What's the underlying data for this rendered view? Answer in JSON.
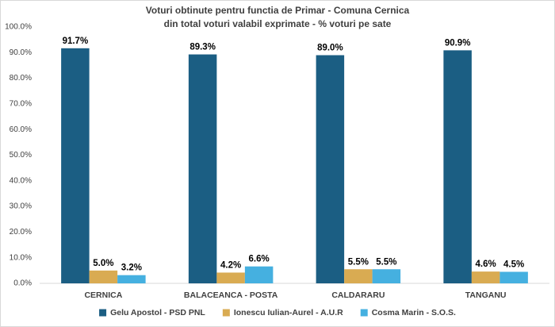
{
  "chart_data": {
    "type": "bar",
    "title": "Voturi obtinute pentru functia de Primar - Comuna Cernica",
    "subtitle": "din total voturi valabil exprimate - % voturi pe sate",
    "categories": [
      "CERNICA",
      "BALACEANCA - POSTA",
      "CALDARARU",
      "TANGANU"
    ],
    "series": [
      {
        "name": "Gelu Apostol - PSD PNL",
        "color": "#1b5e83",
        "values": [
          91.7,
          89.3,
          89.0,
          90.9
        ],
        "value_labels": [
          "91.7%",
          "89.3%",
          "89.0%",
          "90.9%"
        ]
      },
      {
        "name": "Ionescu Iulian-Aurel - A.U.R",
        "color": "#d9ab52",
        "values": [
          5.0,
          4.2,
          5.5,
          4.6
        ],
        "value_labels": [
          "5.0%",
          "4.2%",
          "5.5%",
          "4.6%"
        ]
      },
      {
        "name": "Cosma Marin - S.O.S.",
        "color": "#45b0e0",
        "values": [
          3.2,
          6.6,
          5.5,
          4.5
        ],
        "value_labels": [
          "3.2%",
          "6.6%",
          "5.5%",
          "4.5%"
        ]
      }
    ],
    "ylim": [
      0,
      100
    ],
    "yticks": [
      {
        "value": 0,
        "label": "0.0%"
      },
      {
        "value": 10,
        "label": "10.0%"
      },
      {
        "value": 20,
        "label": "20.0%"
      },
      {
        "value": 30,
        "label": "30.0%"
      },
      {
        "value": 40,
        "label": "40.0%"
      },
      {
        "value": 50,
        "label": "50.0%"
      },
      {
        "value": 60,
        "label": "60.0%"
      },
      {
        "value": 70,
        "label": "70.0%"
      },
      {
        "value": 80,
        "label": "80.0%"
      },
      {
        "value": 90,
        "label": "90.0%"
      },
      {
        "value": 100,
        "label": "100.0%"
      }
    ],
    "grid": false,
    "legend": "bottom"
  }
}
